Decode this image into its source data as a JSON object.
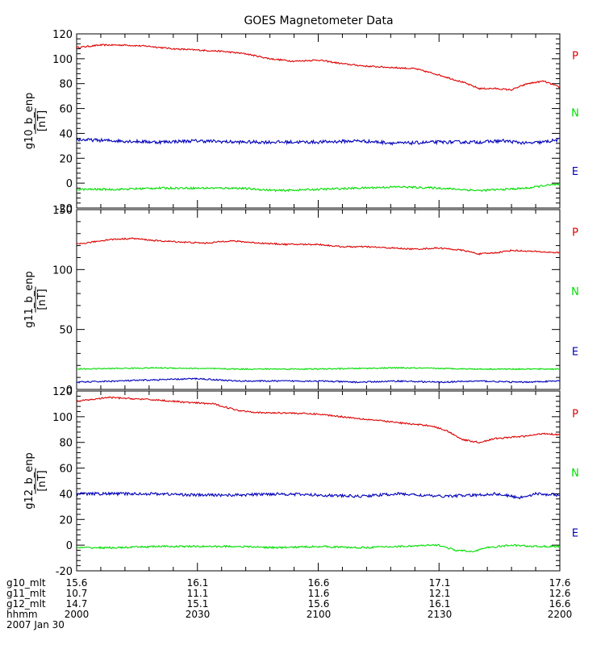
{
  "title": "GOES Magnetometer Data",
  "colors": {
    "P": "#dd0000",
    "N": "#00dd00",
    "E": "#0000bb",
    "axis": "#000000"
  },
  "chart_data": [
    {
      "type": "line",
      "ylabel": "g10_b_enp",
      "unit": "[nT]",
      "ylim": [
        -20,
        120
      ],
      "yticks": [
        -20,
        0,
        20,
        40,
        60,
        80,
        100,
        120
      ],
      "ytick_labels": [
        "-20",
        "0",
        "20",
        "40",
        "60",
        "80",
        "100",
        "120"
      ],
      "xlim": [
        0,
        120
      ],
      "legend": [
        "P",
        "N",
        "E"
      ],
      "series": [
        {
          "name": "P",
          "color": "#dd0000",
          "noise": 0.6,
          "x": [
            0,
            6,
            12,
            18,
            24,
            30,
            36,
            42,
            48,
            54,
            60,
            66,
            72,
            78,
            84,
            90,
            96,
            100,
            104,
            108,
            112,
            116,
            120
          ],
          "y": [
            109,
            111,
            111,
            110,
            108,
            107,
            106,
            104,
            100,
            98,
            99,
            96,
            94,
            93,
            92,
            87,
            81,
            76,
            76,
            75,
            80,
            82,
            77
          ]
        },
        {
          "name": "E",
          "color": "#0000bb",
          "noise": 1.3,
          "x": [
            0,
            10,
            20,
            30,
            40,
            50,
            60,
            70,
            80,
            90,
            100,
            106,
            112,
            116,
            120
          ],
          "y": [
            35,
            34,
            33,
            34,
            33,
            33,
            33,
            34,
            32,
            33,
            33,
            34,
            32,
            33,
            35
          ]
        },
        {
          "name": "N",
          "color": "#00dd00",
          "noise": 0.8,
          "x": [
            0,
            10,
            20,
            30,
            40,
            50,
            60,
            70,
            80,
            90,
            100,
            106,
            112,
            116,
            120
          ],
          "y": [
            -5,
            -5,
            -4,
            -4,
            -4,
            -6,
            -5,
            -4,
            -3,
            -4,
            -6,
            -5,
            -4,
            -2,
            -1
          ]
        }
      ]
    },
    {
      "type": "line",
      "ylabel": "g11_b_enp",
      "unit": "[nT]",
      "ylim": [
        0,
        150
      ],
      "yticks": [
        0,
        50,
        100,
        150
      ],
      "ytick_labels": [
        "0",
        "50",
        "100",
        "150"
      ],
      "xlim": [
        0,
        120
      ],
      "legend": [
        "P",
        "N",
        "E"
      ],
      "series": [
        {
          "name": "P",
          "color": "#dd0000",
          "noise": 0.6,
          "x": [
            0,
            8,
            14,
            20,
            26,
            32,
            38,
            46,
            52,
            60,
            66,
            72,
            78,
            84,
            90,
            96,
            100,
            104,
            108,
            114,
            120
          ],
          "y": [
            121,
            125,
            126,
            124,
            123,
            122,
            124,
            122,
            121,
            121,
            119,
            119,
            118,
            117,
            118,
            116,
            113,
            114,
            116,
            115,
            114
          ]
        },
        {
          "name": "N",
          "color": "#00dd00",
          "noise": 0.5,
          "x": [
            0,
            20,
            40,
            60,
            80,
            100,
            120
          ],
          "y": [
            17,
            18,
            17,
            17,
            18,
            17,
            17
          ]
        },
        {
          "name": "E",
          "color": "#0000bb",
          "noise": 0.6,
          "x": [
            0,
            10,
            20,
            30,
            40,
            50,
            60,
            70,
            80,
            90,
            100,
            110,
            120
          ],
          "y": [
            6,
            7,
            8,
            9,
            7,
            7,
            7,
            6,
            7,
            6,
            7,
            6,
            7
          ]
        }
      ]
    },
    {
      "type": "line",
      "ylabel": "g12_b_enp",
      "unit": "[nT]",
      "ylim": [
        -20,
        120
      ],
      "yticks": [
        -20,
        0,
        20,
        40,
        60,
        80,
        100,
        120
      ],
      "ytick_labels": [
        "-20",
        "0",
        "20",
        "40",
        "60",
        "80",
        "100",
        "120"
      ],
      "xlim": [
        0,
        120
      ],
      "legend": [
        "P",
        "N",
        "E"
      ],
      "series": [
        {
          "name": "P",
          "color": "#dd0000",
          "noise": 0.6,
          "x": [
            0,
            8,
            14,
            20,
            28,
            34,
            40,
            46,
            52,
            60,
            66,
            72,
            78,
            84,
            88,
            92,
            96,
            100,
            104,
            108,
            112,
            116,
            120
          ],
          "y": [
            112,
            115,
            114,
            113,
            111,
            110,
            105,
            103,
            103,
            102,
            100,
            98,
            96,
            94,
            93,
            89,
            82,
            80,
            83,
            84,
            85,
            87,
            86
          ]
        },
        {
          "name": "E",
          "color": "#0000bb",
          "noise": 1.1,
          "x": [
            0,
            10,
            20,
            30,
            40,
            50,
            60,
            70,
            80,
            90,
            100,
            104,
            110,
            114,
            120
          ],
          "y": [
            40,
            40,
            40,
            39,
            39,
            40,
            39,
            38,
            40,
            38,
            39,
            40,
            37,
            40,
            39
          ]
        },
        {
          "name": "N",
          "color": "#00dd00",
          "noise": 0.7,
          "x": [
            0,
            10,
            20,
            30,
            40,
            50,
            60,
            70,
            80,
            90,
            94,
            98,
            102,
            108,
            114,
            120
          ],
          "y": [
            -2,
            -2,
            -1,
            -1,
            -1,
            -2,
            -1,
            -2,
            -1,
            0,
            -4,
            -5,
            -2,
            0,
            -1,
            -1
          ]
        }
      ]
    }
  ],
  "x_axis": {
    "rows": [
      {
        "label": "g10_mlt",
        "values": [
          "15.6",
          "16.1",
          "16.6",
          "17.1",
          "17.6"
        ]
      },
      {
        "label": "g11_mlt",
        "values": [
          "10.7",
          "11.1",
          "11.6",
          "12.1",
          "12.6"
        ]
      },
      {
        "label": "g12_mlt",
        "values": [
          "14.7",
          "15.1",
          "15.6",
          "16.1",
          "16.6"
        ]
      },
      {
        "label": "hhmm",
        "values": [
          "2000",
          "2030",
          "2100",
          "2130",
          "2200"
        ]
      }
    ],
    "date": "2007 Jan 30"
  }
}
